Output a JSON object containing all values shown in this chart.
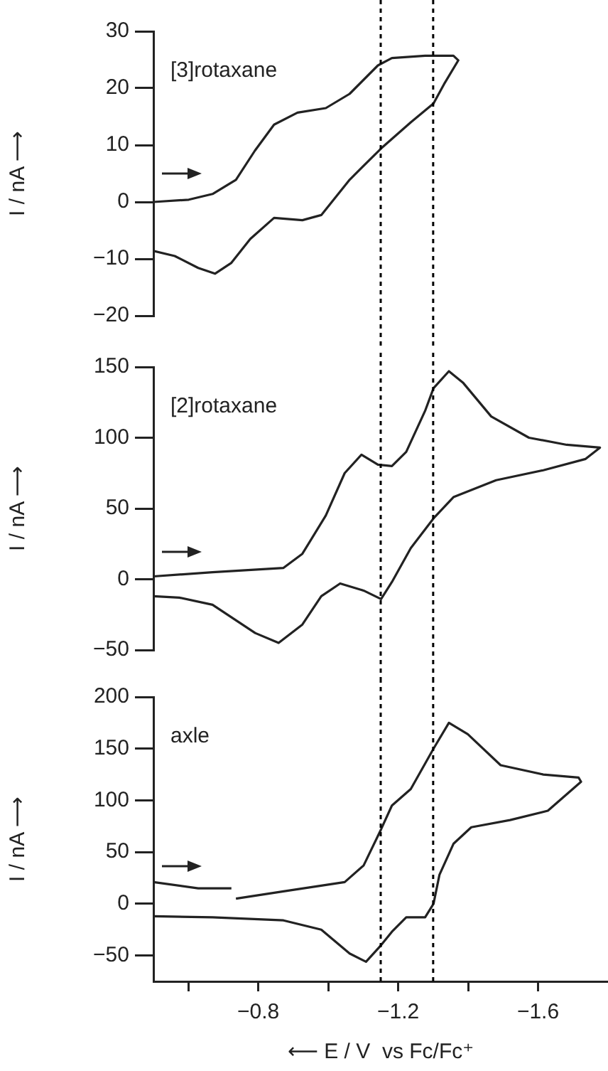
{
  "chart_data": [
    {
      "type": "line",
      "ylabel": "I / nA ⟶",
      "annotations": [
        "[3]rotaxane"
      ],
      "xlim": [
        -0.5,
        -1.8
      ],
      "ylim": [
        -20,
        30
      ],
      "yticks": [
        -20,
        -10,
        0,
        10,
        20,
        30
      ],
      "tick_labels": "y",
      "grid": false,
      "legend": false,
      "marker": "none",
      "line_style": "solid",
      "ref_lines": [
        {
          "axis": "x",
          "value": -1.15,
          "color": "#000000",
          "line_style": "dotted"
        },
        {
          "axis": "x",
          "value": -1.3,
          "color": "#000000",
          "line_style": "dotted"
        }
      ],
      "series": [
        {
          "color": "#222222",
          "x": [
            -0.5,
            -0.601,
            -0.669,
            -0.736,
            -0.79,
            -0.845,
            -0.912,
            -0.993,
            -1.061,
            -1.142,
            -1.182,
            -1.277,
            -1.358,
            -1.372,
            -1.331,
            -1.301,
            -1.236,
            -1.151,
            -1.061,
            -0.98,
            -0.926,
            -0.845,
            -0.777,
            -0.723,
            -0.676,
            -0.628,
            -0.561,
            -0.5
          ],
          "values": [
            0,
            0.4,
            1.4,
            3.9,
            9,
            13.6,
            15.7,
            16.5,
            19,
            24,
            25.3,
            25.7,
            25.7,
            24.9,
            20.7,
            17.3,
            14,
            9.4,
            3.9,
            -2.3,
            -3.2,
            -2.8,
            -6.5,
            -10.7,
            -12.6,
            -11.6,
            -9.5,
            -8.6
          ]
        }
      ]
    },
    {
      "type": "line",
      "ylabel": "I / nA ⟶",
      "annotations": [
        "[2]rotaxane"
      ],
      "xlim": [
        -0.5,
        -1.8
      ],
      "ylim": [
        -50,
        150
      ],
      "yticks": [
        -50,
        0,
        50,
        100,
        150
      ],
      "tick_labels": "y",
      "grid": false,
      "legend": false,
      "marker": "none",
      "line_style": "solid",
      "ref_lines": [
        {
          "axis": "x",
          "value": -1.15,
          "color": "#000000",
          "line_style": "dotted"
        },
        {
          "axis": "x",
          "value": -1.3,
          "color": "#000000",
          "line_style": "dotted"
        }
      ],
      "series": [
        {
          "color": "#222222",
          "x": [
            -0.5,
            -0.669,
            -0.872,
            -0.926,
            -0.993,
            -1.047,
            -1.095,
            -1.142,
            -1.182,
            -1.223,
            -1.277,
            -1.301,
            -1.345,
            -1.385,
            -1.466,
            -1.574,
            -1.682,
            -1.777,
            -1.736,
            -1.615,
            -1.48,
            -1.358,
            -1.301,
            -1.236,
            -1.182,
            -1.151,
            -1.101,
            -1.034,
            -0.98,
            -0.926,
            -0.858,
            -0.791,
            -0.669,
            -0.574,
            -0.5
          ],
          "values": [
            2,
            5,
            8,
            18,
            45,
            75,
            88,
            81,
            80,
            90,
            119,
            135,
            147,
            139,
            115,
            100,
            95,
            93,
            85,
            77,
            70,
            58,
            43,
            22,
            -2,
            -14,
            -8,
            -3,
            -12,
            -32,
            -45,
            -38,
            -18,
            -13,
            -12
          ]
        }
      ]
    },
    {
      "type": "line",
      "xlabel": "⟵ E / V  vs Fc/Fc⁺",
      "ylabel": "I / nA ⟶",
      "annotations": [
        "axle"
      ],
      "xlim": [
        -0.5,
        -1.8
      ],
      "xticks": [
        {
          "value": -0.6,
          "label": null
        },
        -0.8,
        {
          "value": -1.0,
          "label": null
        },
        -1.2,
        {
          "value": -1.4,
          "label": null
        },
        -1.6
      ],
      "ylim": [
        -75,
        200
      ],
      "yticks": [
        -50,
        0,
        50,
        100,
        150,
        200
      ],
      "grid": false,
      "legend": false,
      "marker": "none",
      "line_style": "solid",
      "ref_lines": [
        {
          "axis": "x",
          "value": -1.15,
          "color": "#000000",
          "line_style": "dotted"
        },
        {
          "axis": "x",
          "value": -1.3,
          "color": "#000000",
          "line_style": "dotted"
        }
      ],
      "series": [
        {
          "color": "#222222",
          "x": [
            -0.5,
            -0.628,
            -0.723,
            -0.73,
            -0.736,
            -0.872,
            -1.047,
            -1.101,
            -1.151,
            -1.182,
            -1.236,
            -1.301,
            -1.345,
            -1.399,
            -1.493,
            -1.615,
            -1.716,
            -1.723,
            -1.628,
            -1.52,
            -1.409,
            -1.358,
            -1.318,
            -1.301,
            -1.277,
            -1.223,
            -1.182,
            -1.151,
            -1.108,
            -1.061,
            -0.98,
            -0.872,
            -0.669,
            -0.5
          ],
          "values": [
            21,
            15,
            15,
            null,
            5,
            12,
            21,
            37,
            72,
            95,
            111,
            150,
            175,
            164,
            134,
            125,
            122,
            118,
            90,
            81,
            74,
            58,
            28,
            0,
            -13,
            -13,
            -27,
            -40,
            -56,
            -48,
            -25,
            -16,
            -13,
            -12
          ]
        }
      ]
    }
  ]
}
